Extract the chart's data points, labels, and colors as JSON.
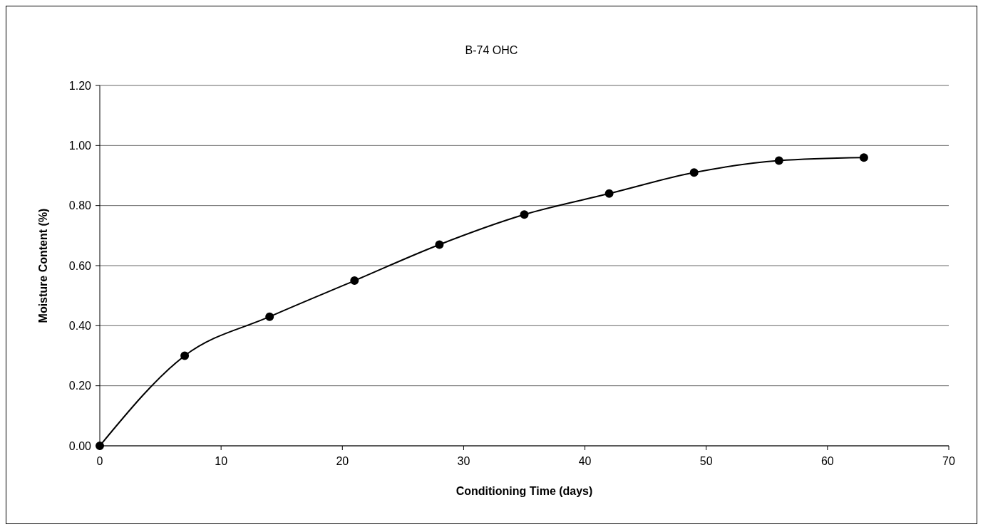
{
  "chart_data": {
    "type": "line",
    "title": "B-74 OHC",
    "xlabel": "Conditioning Time (days)",
    "ylabel": "Moisture Content (%)",
    "x": [
      0,
      7,
      14,
      21,
      28,
      35,
      42,
      49,
      56,
      63
    ],
    "series": [
      {
        "color": "#000000",
        "values": [
          0,
          0.3,
          0.43,
          0.55,
          0.67,
          0.77,
          0.84,
          0.91,
          0.95,
          0.96
        ]
      }
    ],
    "xlim": [
      0,
      70
    ],
    "xticks": [
      0,
      10,
      20,
      30,
      40,
      50,
      60,
      70
    ],
    "ylim": [
      0,
      1.2
    ],
    "yticks": [
      {
        "value": 0,
        "label": "0.00"
      },
      {
        "value": 0.2,
        "label": "0.20"
      },
      {
        "value": 0.4,
        "label": "0.40"
      },
      {
        "value": 0.6,
        "label": "0.60"
      },
      {
        "value": 0.8,
        "label": "0.80"
      },
      {
        "value": 1,
        "label": "1.00"
      },
      {
        "value": 1.2,
        "label": "1.20"
      }
    ],
    "grid": "y",
    "marker": "circle",
    "line_style": "solid",
    "legend": false
  }
}
